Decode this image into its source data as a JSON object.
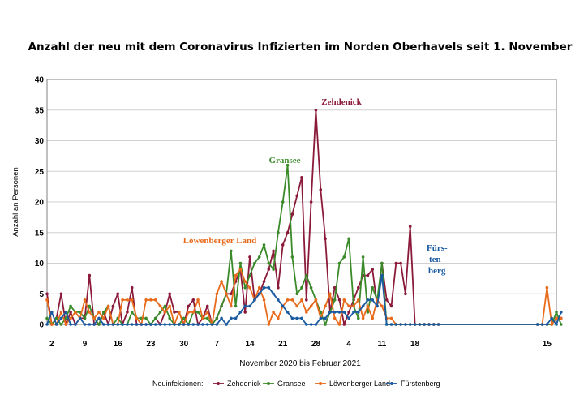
{
  "chart_data": {
    "type": "line",
    "title": "Anzahl der neu mit dem Coronavirus Infizierten im Norden Oberhavels seit 1. November",
    "xlabel": "November 2020 bis Februar 2021",
    "ylabel": "Anzahl an Personen",
    "ylim": [
      0,
      40
    ],
    "yticks": [
      0,
      5,
      10,
      15,
      20,
      25,
      30,
      35,
      40
    ],
    "xlim": [
      1,
      109
    ],
    "grid": true,
    "x_ticks": [
      {
        "x": 2,
        "label": "2"
      },
      {
        "x": 9,
        "label": "9"
      },
      {
        "x": 16,
        "label": "16"
      },
      {
        "x": 23,
        "label": "23"
      },
      {
        "x": 30,
        "label": "30"
      },
      {
        "x": 37,
        "label": "7"
      },
      {
        "x": 44,
        "label": "14"
      },
      {
        "x": 51,
        "label": "21"
      },
      {
        "x": 58,
        "label": "28"
      },
      {
        "x": 65,
        "label": "4"
      },
      {
        "x": 72,
        "label": "11"
      },
      {
        "x": 79,
        "label": "18"
      },
      {
        "x": 107,
        "label": "15"
      }
    ],
    "legend_title": "Neuinfektionen:",
    "legend_position": "bottom",
    "series": [
      {
        "name": "Zehdenick",
        "color": "#8b1a3a",
        "x": [
          1,
          2,
          3,
          4,
          5,
          6,
          7,
          8,
          9,
          10,
          11,
          12,
          13,
          14,
          15,
          16,
          17,
          18,
          19,
          20,
          21,
          22,
          23,
          24,
          25,
          26,
          27,
          28,
          29,
          30,
          31,
          32,
          33,
          34,
          35,
          36,
          37,
          38,
          39,
          40,
          41,
          42,
          43,
          44,
          45,
          46,
          47,
          48,
          49,
          50,
          51,
          52,
          53,
          54,
          55,
          56,
          57,
          58,
          59,
          60,
          61,
          62,
          63,
          64,
          65,
          66,
          67,
          68,
          69,
          70,
          71,
          72,
          73,
          74,
          75,
          76,
          77,
          78,
          79,
          80,
          81,
          82,
          83,
          84,
          105,
          106,
          107,
          108,
          109,
          110
        ],
        "y": [
          5,
          0,
          1,
          5,
          0,
          2,
          0,
          1,
          1,
          8,
          0,
          0,
          2,
          0,
          3,
          5,
          0,
          2,
          6,
          0,
          0,
          0,
          0,
          1,
          0,
          2,
          5,
          2,
          2,
          0,
          3,
          4,
          0,
          1,
          3,
          0,
          1,
          3,
          5,
          5,
          7,
          9,
          2,
          11,
          4,
          5,
          7,
          9,
          12,
          6,
          13,
          15,
          18,
          21,
          24,
          4,
          20,
          35,
          22,
          14,
          2,
          6,
          4,
          0,
          2,
          4,
          6,
          8,
          8,
          9,
          3,
          10,
          4,
          3,
          10,
          10,
          5,
          16,
          0,
          0,
          0,
          0,
          0,
          0,
          0,
          0,
          0,
          0,
          1,
          1
        ]
      },
      {
        "name": "Gransee",
        "color": "#3a8a2a",
        "x": [
          1,
          2,
          3,
          4,
          5,
          6,
          7,
          8,
          9,
          10,
          11,
          12,
          13,
          14,
          15,
          16,
          17,
          18,
          19,
          20,
          21,
          22,
          23,
          24,
          25,
          26,
          27,
          28,
          29,
          30,
          31,
          32,
          33,
          34,
          35,
          36,
          37,
          38,
          39,
          40,
          41,
          42,
          43,
          44,
          45,
          46,
          47,
          48,
          49,
          50,
          51,
          52,
          53,
          54,
          55,
          56,
          57,
          58,
          59,
          60,
          61,
          62,
          63,
          64,
          65,
          66,
          67,
          68,
          69,
          70,
          71,
          72,
          73,
          74,
          75,
          76,
          77,
          78,
          79,
          80,
          81,
          82,
          83,
          84,
          105,
          106,
          107,
          108,
          109,
          110
        ],
        "y": [
          1,
          0,
          1,
          0,
          1,
          3,
          2,
          2,
          1,
          3,
          1,
          0,
          2,
          3,
          0,
          1,
          0,
          0,
          2,
          1,
          1,
          1,
          0,
          1,
          2,
          3,
          1,
          0,
          0,
          1,
          0,
          2,
          2,
          1,
          1,
          0,
          1,
          3,
          5,
          12,
          3,
          10,
          6,
          8,
          10,
          11,
          13,
          10,
          9,
          15,
          20,
          26,
          11,
          5,
          6,
          8,
          6,
          4,
          2,
          0,
          2,
          4,
          10,
          11,
          14,
          3,
          1,
          11,
          2,
          6,
          4,
          10,
          0,
          0,
          0,
          0,
          0,
          0,
          0,
          0,
          0,
          0,
          0,
          0,
          0,
          0,
          0,
          0,
          2,
          0
        ]
      },
      {
        "name": "Löwenberger Land",
        "color": "#e86a1a",
        "x": [
          1,
          2,
          3,
          4,
          5,
          6,
          7,
          8,
          9,
          10,
          11,
          12,
          13,
          14,
          15,
          16,
          17,
          18,
          19,
          20,
          21,
          22,
          23,
          24,
          25,
          26,
          27,
          28,
          29,
          30,
          31,
          32,
          33,
          34,
          35,
          36,
          37,
          38,
          39,
          40,
          41,
          42,
          43,
          44,
          45,
          46,
          47,
          48,
          49,
          50,
          51,
          52,
          53,
          54,
          55,
          56,
          57,
          58,
          59,
          60,
          61,
          62,
          63,
          64,
          65,
          66,
          67,
          68,
          69,
          70,
          71,
          72,
          73,
          74,
          75,
          76,
          77,
          78,
          79,
          80,
          81,
          82,
          83,
          84,
          105,
          106,
          107,
          108,
          109,
          110
        ],
        "y": [
          4,
          0,
          0,
          2,
          0,
          1,
          2,
          1,
          4,
          2,
          1,
          2,
          1,
          3,
          0,
          0,
          4,
          4,
          4,
          1,
          0,
          4,
          4,
          4,
          3,
          2,
          3,
          0,
          2,
          0,
          2,
          2,
          4,
          1,
          2,
          0,
          5,
          7,
          5,
          3,
          8,
          9,
          7,
          6,
          4,
          6,
          4,
          0,
          2,
          1,
          3,
          4,
          4,
          3,
          4,
          2,
          3,
          4,
          1,
          3,
          5,
          1,
          0,
          4,
          3,
          3,
          4,
          1,
          3,
          1,
          4,
          3,
          1,
          1,
          0,
          0,
          0,
          0,
          0,
          0,
          0,
          0,
          0,
          0,
          0,
          0,
          6,
          0,
          1,
          1
        ]
      },
      {
        "name": "Fürstenberg",
        "color": "#1a5aa0",
        "x": [
          1,
          2,
          3,
          4,
          5,
          6,
          7,
          8,
          9,
          10,
          11,
          12,
          13,
          14,
          15,
          16,
          17,
          18,
          19,
          20,
          21,
          22,
          23,
          24,
          25,
          26,
          27,
          28,
          29,
          30,
          31,
          32,
          33,
          34,
          35,
          36,
          37,
          38,
          39,
          40,
          41,
          42,
          43,
          44,
          45,
          46,
          47,
          48,
          49,
          50,
          51,
          52,
          53,
          54,
          55,
          56,
          57,
          58,
          59,
          60,
          61,
          62,
          63,
          64,
          65,
          66,
          67,
          68,
          69,
          70,
          71,
          72,
          73,
          74,
          75,
          76,
          77,
          78,
          79,
          80,
          81,
          82,
          83,
          84,
          105,
          106,
          107,
          108,
          109,
          110
        ],
        "y": [
          0,
          2,
          0,
          1,
          2,
          0,
          0,
          1,
          0,
          0,
          0,
          1,
          0,
          0,
          0,
          0,
          0,
          0,
          0,
          0,
          0,
          0,
          0,
          0,
          0,
          0,
          0,
          0,
          0,
          0,
          0,
          0,
          0,
          0,
          0,
          0,
          0,
          1,
          0,
          1,
          1,
          2,
          3,
          3,
          4,
          5,
          6,
          6,
          5,
          4,
          3,
          2,
          1,
          1,
          1,
          0,
          0,
          0,
          1,
          1,
          2,
          2,
          2,
          2,
          1,
          2,
          2,
          3,
          4,
          4,
          3,
          8,
          0,
          0,
          0,
          0,
          0,
          0,
          0,
          0,
          0,
          0,
          0,
          0,
          0,
          0,
          0,
          1,
          0,
          2
        ]
      }
    ],
    "annotations": [
      {
        "text": "Zehdenick",
        "series": "Zehdenick"
      },
      {
        "text": "Gransee",
        "series": "Gransee"
      },
      {
        "text": "Löwenberger Land",
        "series": "Löwenberger Land"
      },
      {
        "text": "Fürs-",
        "series": "Fürstenberg"
      },
      {
        "text": "ten-",
        "series": "Fürstenberg"
      },
      {
        "text": "berg",
        "series": "Fürstenberg"
      }
    ]
  }
}
